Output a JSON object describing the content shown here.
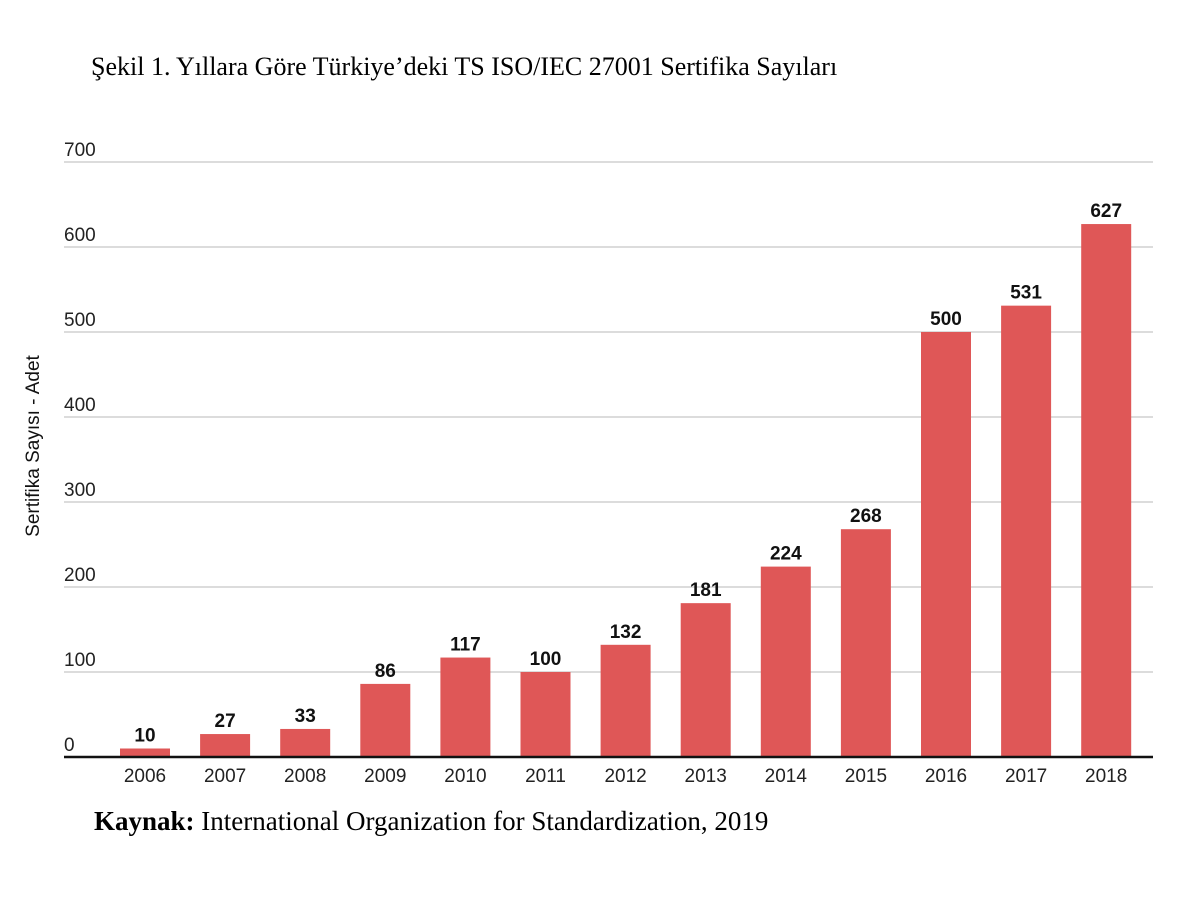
{
  "figure_caption": "Şekil 1. Yıllara Göre Türkiye’deki TS ISO/IEC 27001 Sertifika Sayıları",
  "source": {
    "label": "Kaynak:",
    "text": " International Organization for Standardization, 2019"
  },
  "chart_data": {
    "type": "bar",
    "title": "",
    "xlabel": "",
    "ylabel": "Sertifika Sayısı - Adet",
    "categories": [
      "2006",
      "2007",
      "2008",
      "2009",
      "2010",
      "2011",
      "2012",
      "2013",
      "2014",
      "2015",
      "2016",
      "2017",
      "2018"
    ],
    "values": [
      10,
      27,
      33,
      86,
      117,
      100,
      132,
      181,
      224,
      268,
      500,
      531,
      627
    ],
    "ylim": [
      0,
      700
    ],
    "yticks": [
      0,
      100,
      200,
      300,
      400,
      500,
      600,
      700
    ],
    "grid": true,
    "legend": "none",
    "bar_color": "#df5757",
    "data_labels": true
  }
}
